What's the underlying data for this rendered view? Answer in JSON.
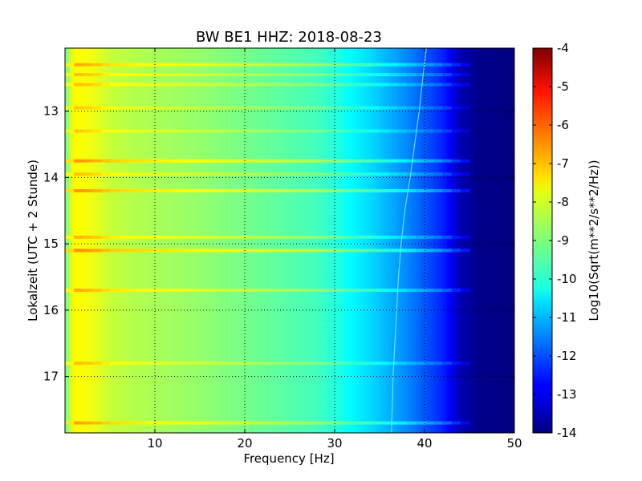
{
  "chart_data": {
    "type": "heatmap",
    "title": "BW BE1 HHZ: 2018-08-23",
    "xlabel": "Frequency [Hz]",
    "ylabel": "Lokalzeit (UTC + 2 Stunde)",
    "xlim": [
      0,
      50
    ],
    "ylim": [
      12.05,
      17.85
    ],
    "y_inverted": true,
    "x_ticks": [
      "10",
      "20",
      "30",
      "40",
      "50"
    ],
    "x_tick_values": [
      10,
      20,
      30,
      40,
      50
    ],
    "y_ticks": [
      "13",
      "14",
      "15",
      "16",
      "17"
    ],
    "y_tick_values": [
      13,
      14,
      15,
      16,
      17
    ],
    "grid": true,
    "colormap": "jet",
    "colorbar": {
      "label": "Log10(Sqrt(m**2/s**2/Hz))",
      "range": [
        -14,
        -4
      ],
      "ticks": [
        "-4",
        "-5",
        "-6",
        "-7",
        "-8",
        "-9",
        "-10",
        "-11",
        "-12",
        "-13",
        "-14"
      ],
      "tick_values": [
        -4,
        -5,
        -6,
        -7,
        -8,
        -9,
        -10,
        -11,
        -12,
        -13,
        -14
      ]
    },
    "spectrum_profile": {
      "frequency_hz": [
        0,
        1,
        2,
        3,
        5,
        8,
        10,
        15,
        20,
        25,
        28,
        30,
        32,
        34,
        36,
        38,
        40,
        42,
        43,
        44,
        46,
        50
      ],
      "log_psd": [
        -9.2,
        -7.7,
        -7.8,
        -7.9,
        -8.3,
        -8.5,
        -8.6,
        -8.8,
        -9.1,
        -9.4,
        -9.6,
        -9.9,
        -10.3,
        -10.6,
        -11.0,
        -11.4,
        -11.9,
        -12.4,
        -12.9,
        -13.5,
        -13.9,
        -14.0
      ]
    },
    "horizontal_bands": {
      "hour": [
        12.3,
        12.45,
        12.6,
        12.95,
        13.3,
        13.75,
        13.95,
        14.2,
        14.9,
        15.1,
        15.7,
        16.8,
        17.7
      ],
      "log_psd_offset": [
        0.8,
        0.6,
        0.6,
        0.5,
        0.5,
        1.0,
        0.6,
        1.0,
        0.7,
        1.1,
        0.8,
        0.6,
        0.9
      ]
    },
    "traced_line": {
      "hour": [
        12.05,
        12.5,
        13.0,
        13.5,
        14.0,
        14.5,
        15.0,
        15.5,
        16.0,
        16.5,
        17.0,
        17.5,
        17.85
      ],
      "frequency_hz": [
        40.2,
        39.8,
        39.4,
        38.9,
        38.4,
        37.8,
        37.4,
        37.1,
        36.9,
        36.7,
        36.5,
        36.4,
        36.3
      ]
    }
  }
}
